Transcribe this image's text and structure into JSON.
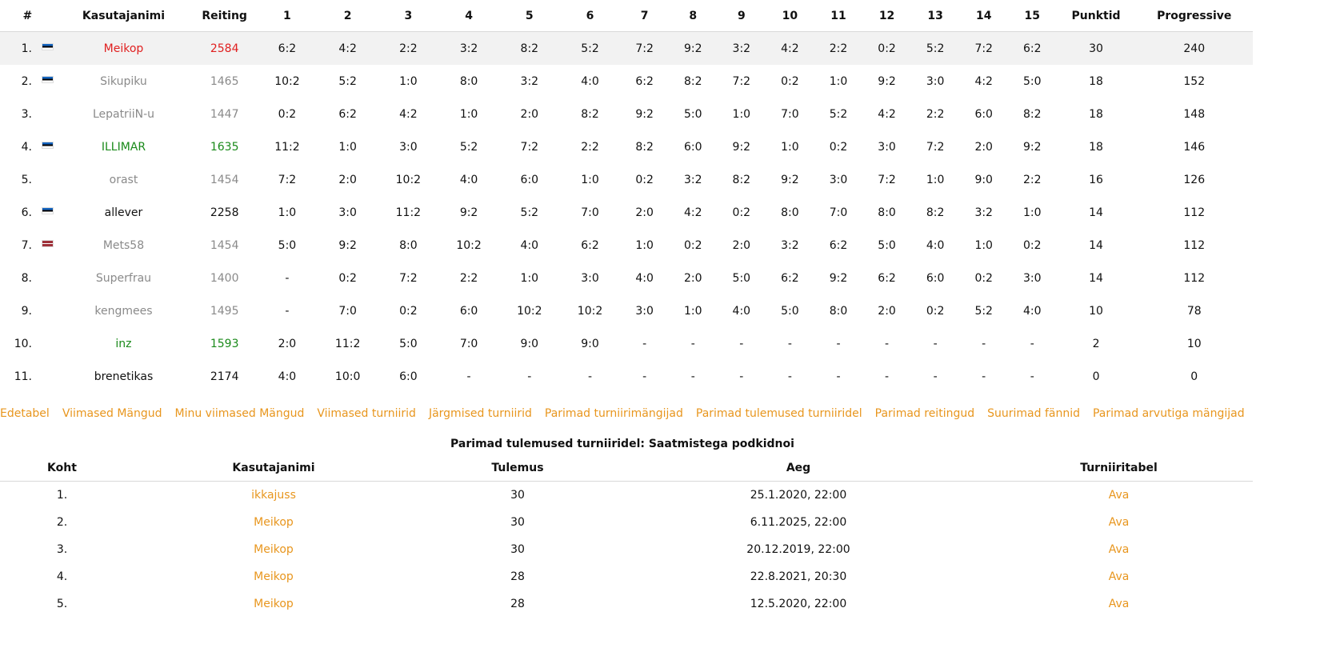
{
  "standings": {
    "headers": [
      "#",
      "Kasutajanimi",
      "Reiting",
      "1",
      "2",
      "3",
      "4",
      "5",
      "6",
      "7",
      "8",
      "9",
      "10",
      "11",
      "12",
      "13",
      "14",
      "15",
      "Punktid",
      "Progressive"
    ],
    "rows": [
      {
        "rank": "1.",
        "flag": "ee",
        "name": "Meikop",
        "rating": "2584",
        "color": "red",
        "results": [
          "6:2",
          "4:2",
          "2:2",
          "3:2",
          "8:2",
          "5:2",
          "7:2",
          "9:2",
          "3:2",
          "4:2",
          "2:2",
          "0:2",
          "5:2",
          "7:2",
          "6:2"
        ],
        "points": "30",
        "progressive": "240"
      },
      {
        "rank": "2.",
        "flag": "ee",
        "name": "Sikupiku",
        "rating": "1465",
        "color": "gray",
        "results": [
          "10:2",
          "5:2",
          "1:0",
          "8:0",
          "3:2",
          "4:0",
          "6:2",
          "8:2",
          "7:2",
          "0:2",
          "1:0",
          "9:2",
          "3:0",
          "4:2",
          "5:0"
        ],
        "points": "18",
        "progressive": "152"
      },
      {
        "rank": "3.",
        "flag": "",
        "name": "LepatriiN-u",
        "rating": "1447",
        "color": "gray",
        "results": [
          "0:2",
          "6:2",
          "4:2",
          "1:0",
          "2:0",
          "8:2",
          "9:2",
          "5:0",
          "1:0",
          "7:0",
          "5:2",
          "4:2",
          "2:2",
          "6:0",
          "8:2"
        ],
        "points": "18",
        "progressive": "148"
      },
      {
        "rank": "4.",
        "flag": "ee",
        "name": "ILLIMAR",
        "rating": "1635",
        "color": "green",
        "results": [
          "11:2",
          "1:0",
          "3:0",
          "5:2",
          "7:2",
          "2:2",
          "8:2",
          "6:0",
          "9:2",
          "1:0",
          "0:2",
          "3:0",
          "7:2",
          "2:0",
          "9:2"
        ],
        "points": "18",
        "progressive": "146"
      },
      {
        "rank": "5.",
        "flag": "",
        "name": "orast",
        "rating": "1454",
        "color": "gray",
        "results": [
          "7:2",
          "2:0",
          "10:2",
          "4:0",
          "6:0",
          "1:0",
          "0:2",
          "3:2",
          "8:2",
          "9:2",
          "3:0",
          "7:2",
          "1:0",
          "9:0",
          "2:2"
        ],
        "points": "16",
        "progressive": "126"
      },
      {
        "rank": "6.",
        "flag": "ee",
        "name": "allever",
        "rating": "2258",
        "color": "black",
        "results": [
          "1:0",
          "3:0",
          "11:2",
          "9:2",
          "5:2",
          "7:0",
          "2:0",
          "4:2",
          "0:2",
          "8:0",
          "7:0",
          "8:0",
          "8:2",
          "3:2",
          "1:0"
        ],
        "points": "14",
        "progressive": "112"
      },
      {
        "rank": "7.",
        "flag": "lv",
        "name": "Mets58",
        "rating": "1454",
        "color": "gray",
        "results": [
          "5:0",
          "9:2",
          "8:0",
          "10:2",
          "4:0",
          "6:2",
          "1:0",
          "0:2",
          "2:0",
          "3:2",
          "6:2",
          "5:0",
          "4:0",
          "1:0",
          "0:2"
        ],
        "points": "14",
        "progressive": "112"
      },
      {
        "rank": "8.",
        "flag": "",
        "name": "Superfrau",
        "rating": "1400",
        "color": "gray",
        "results": [
          "-",
          "0:2",
          "7:2",
          "2:2",
          "1:0",
          "3:0",
          "4:0",
          "2:0",
          "5:0",
          "6:2",
          "9:2",
          "6:2",
          "6:0",
          "0:2",
          "3:0"
        ],
        "points": "14",
        "progressive": "112"
      },
      {
        "rank": "9.",
        "flag": "",
        "name": "kengmees",
        "rating": "1495",
        "color": "gray",
        "results": [
          "-",
          "7:0",
          "0:2",
          "6:0",
          "10:2",
          "10:2",
          "3:0",
          "1:0",
          "4:0",
          "5:0",
          "8:0",
          "2:0",
          "0:2",
          "5:2",
          "4:0"
        ],
        "points": "10",
        "progressive": "78"
      },
      {
        "rank": "10.",
        "flag": "",
        "name": "inz",
        "rating": "1593",
        "color": "green",
        "results": [
          "2:0",
          "11:2",
          "5:0",
          "7:0",
          "9:0",
          "9:0",
          "-",
          "-",
          "-",
          "-",
          "-",
          "-",
          "-",
          "-",
          "-"
        ],
        "points": "2",
        "progressive": "10"
      },
      {
        "rank": "11.",
        "flag": "",
        "name": "brenetikas",
        "rating": "2174",
        "color": "black",
        "results": [
          "4:0",
          "10:0",
          "6:0",
          "-",
          "-",
          "-",
          "-",
          "-",
          "-",
          "-",
          "-",
          "-",
          "-",
          "-",
          "-"
        ],
        "points": "0",
        "progressive": "0"
      }
    ]
  },
  "nav": {
    "links": [
      "Edetabel",
      "Viimased Mängud",
      "Minu viimased Mängud",
      "Viimased turniirid",
      "Järgmised turniirid",
      "Parimad turniirimängijad",
      "Parimad tulemused turniiridel",
      "Parimad reitingud",
      "Suurimad fännid",
      "Parimad arvutiga mängijad"
    ]
  },
  "best": {
    "title": "Parimad tulemused turniiridel: Saatmistega podkidnoi",
    "headers": [
      "Koht",
      "Kasutajanimi",
      "Tulemus",
      "Aeg",
      "Turniiritabel"
    ],
    "rows": [
      {
        "place": "1.",
        "user": "ikkajuss",
        "result": "30",
        "time": "25.1.2020, 22:00",
        "link": "Ava"
      },
      {
        "place": "2.",
        "user": "Meikop",
        "result": "30",
        "time": "6.11.2025, 22:00",
        "link": "Ava"
      },
      {
        "place": "3.",
        "user": "Meikop",
        "result": "30",
        "time": "20.12.2019, 22:00",
        "link": "Ava"
      },
      {
        "place": "4.",
        "user": "Meikop",
        "result": "28",
        "time": "22.8.2021, 20:30",
        "link": "Ava"
      },
      {
        "place": "5.",
        "user": "Meikop",
        "result": "28",
        "time": "12.5.2020, 22:00",
        "link": "Ava"
      }
    ]
  },
  "colors": {
    "red": "#e02020",
    "gray": "#8a8a8a",
    "green": "#1a8a1a",
    "black": "#111111",
    "link": "#e8961e"
  }
}
